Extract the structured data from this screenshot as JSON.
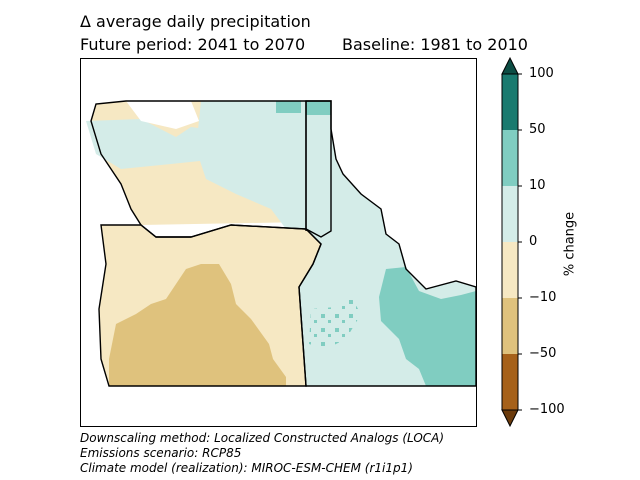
{
  "title": {
    "line1": "Δ average daily precipitation",
    "period": "Future period: 2041 to 2070",
    "baseline": "Baseline: 1981 to 2010"
  },
  "map": {
    "region_states": [
      "Washington",
      "Oregon",
      "Idaho"
    ],
    "fill_classes": [
      {
        "range": "-50 to -10",
        "color": "#dfc27d"
      },
      {
        "range": "-10 to 0",
        "color": "#f6e8c3"
      },
      {
        "range": "0 to 10",
        "color": "#d4ece8"
      },
      {
        "range": "10 to 50",
        "color": "#80cdc1"
      }
    ]
  },
  "colorbar": {
    "label": "% change",
    "ticks": [
      "100",
      "50",
      "10",
      "0",
      "−10",
      "−50",
      "−100"
    ],
    "colors": [
      "#1a7a6f",
      "#80cdc1",
      "#d4ece8",
      "#f6e8c3",
      "#dfc27d",
      "#a6611a"
    ],
    "over_color": "#0d4d44",
    "under_color": "#6b3b0c"
  },
  "notes": {
    "method": "Downscaling method: Localized Constructed Analogs (LOCA)",
    "scenario": "Emissions scenario: RCP85",
    "model": "Climate model (realization): MIROC-ESM-CHEM (r1i1p1)"
  }
}
